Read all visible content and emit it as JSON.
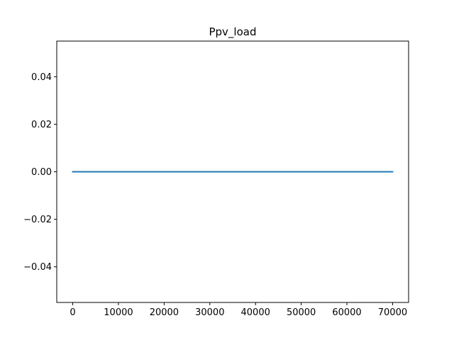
{
  "chart_data": {
    "type": "line",
    "title": "Ppv_load",
    "xlabel": "",
    "ylabel": "",
    "xlim": [
      -3500,
      73500
    ],
    "ylim": [
      -0.055,
      0.055
    ],
    "x_ticks": [
      0,
      10000,
      20000,
      30000,
      40000,
      50000,
      60000,
      70000
    ],
    "x_tick_labels": [
      "0",
      "10000",
      "20000",
      "30000",
      "40000",
      "50000",
      "60000",
      "70000"
    ],
    "y_ticks": [
      -0.04,
      -0.02,
      0.0,
      0.02,
      0.04
    ],
    "y_tick_labels": [
      "−0.04",
      "−0.02",
      "0.00",
      "0.02",
      "0.04"
    ],
    "grid": false,
    "legend": "none",
    "series": [
      {
        "color": "#1f77b4",
        "x": [
          0,
          70000
        ],
        "y": [
          0,
          0
        ]
      }
    ]
  }
}
